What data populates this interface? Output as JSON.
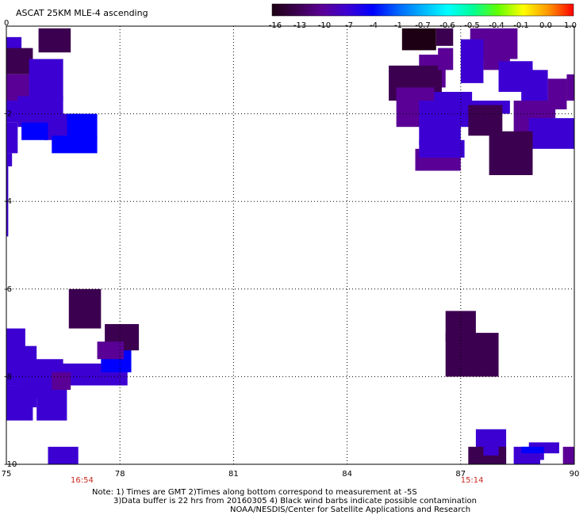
{
  "chart_data": {
    "type": "heatmap",
    "title": "ASCAT 25KM MLE-4 ascending",
    "xlabel": "",
    "ylabel": "",
    "xlim": [
      75,
      90
    ],
    "ylim": [
      -10,
      0
    ],
    "x_ticks": [
      "75",
      "78",
      "81",
      "84",
      "87",
      "90"
    ],
    "y_ticks": [
      "0",
      "-2",
      "-4",
      "-6",
      "-8",
      "-10"
    ],
    "grid": true,
    "colorbar": {
      "ticks": [
        "-16",
        "-13",
        "-10",
        "-7",
        "-4",
        "-1",
        "-0.7",
        "-0.6",
        "-0.5",
        "-0.4",
        "-0.1",
        "0.0",
        "1.0"
      ],
      "colors": [
        "#1e0014",
        "#3c0050",
        "#5a0096",
        "#3c00d2",
        "#0000ff",
        "#0064ff",
        "#00b4ff",
        "#00ffff",
        "#00ff96",
        "#64ff00",
        "#ffff00",
        "#ff9600",
        "#ff0000"
      ]
    },
    "times": [
      {
        "label": "16:54",
        "x": 77.0
      },
      {
        "label": "15:14",
        "x": 87.3
      }
    ],
    "cells": [
      {
        "x0": 75.85,
        "y0": -0.6,
        "x1": 76.7,
        "y1": -0.05,
        "v": -13
      },
      {
        "x0": 75.0,
        "y0": -0.6,
        "x1": 75.4,
        "y1": -0.25,
        "v": -8
      },
      {
        "x0": 75.0,
        "y0": -1.1,
        "x1": 75.7,
        "y1": -0.5,
        "v": -12
      },
      {
        "x0": 75.0,
        "y0": -1.7,
        "x1": 75.9,
        "y1": -1.1,
        "v": -11
      },
      {
        "x0": 75.6,
        "y0": -1.7,
        "x1": 76.5,
        "y1": -0.75,
        "v": -7
      },
      {
        "x0": 75.0,
        "y0": -2.2,
        "x1": 75.8,
        "y1": -1.7,
        "v": -7
      },
      {
        "x0": 75.3,
        "y0": -2.3,
        "x1": 76.5,
        "y1": -1.6,
        "v": -6
      },
      {
        "x0": 76.0,
        "y0": -2.6,
        "x1": 76.9,
        "y1": -2.0,
        "v": -6
      },
      {
        "x0": 76.6,
        "y0": -2.6,
        "x1": 77.4,
        "y1": -2.0,
        "v": -5
      },
      {
        "x0": 75.4,
        "y0": -2.6,
        "x1": 76.1,
        "y1": -2.2,
        "v": -5
      },
      {
        "x0": 75.0,
        "y0": -2.9,
        "x1": 75.3,
        "y1": -2.2,
        "v": -7
      },
      {
        "x0": 76.2,
        "y0": -2.9,
        "x1": 77.4,
        "y1": -2.5,
        "v": -5
      },
      {
        "x0": 75.0,
        "y0": -3.2,
        "x1": 75.15,
        "y1": -2.9,
        "v": -7
      },
      {
        "x0": 75.0,
        "y0": -4.8,
        "x1": 75.05,
        "y1": -3.2,
        "v": -8
      },
      {
        "x0": 85.45,
        "y0": -0.55,
        "x1": 86.35,
        "y1": -0.05,
        "v": -15
      },
      {
        "x0": 86.35,
        "y0": -0.45,
        "x1": 86.8,
        "y1": -0.05,
        "v": -12
      },
      {
        "x0": 85.9,
        "y0": -1.4,
        "x1": 86.6,
        "y1": -0.65,
        "v": -11
      },
      {
        "x0": 85.1,
        "y0": -1.7,
        "x1": 86.5,
        "y1": -0.9,
        "v": -12
      },
      {
        "x0": 86.4,
        "y0": -1.0,
        "x1": 86.8,
        "y1": -0.5,
        "v": -9
      },
      {
        "x0": 87.25,
        "y0": -0.75,
        "x1": 88.5,
        "y1": -0.05,
        "v": -10
      },
      {
        "x0": 87.6,
        "y0": -1.0,
        "x1": 88.3,
        "y1": -0.25,
        "v": -11
      },
      {
        "x0": 87.0,
        "y0": -1.3,
        "x1": 87.6,
        "y1": -0.3,
        "v": -7
      },
      {
        "x0": 88.0,
        "y0": -1.5,
        "x1": 88.9,
        "y1": -0.8,
        "v": -7
      },
      {
        "x0": 88.6,
        "y0": -1.7,
        "x1": 89.3,
        "y1": -1.0,
        "v": -8
      },
      {
        "x0": 89.3,
        "y0": -1.9,
        "x1": 89.8,
        "y1": -1.2,
        "v": -11
      },
      {
        "x0": 89.8,
        "y0": -1.7,
        "x1": 90.0,
        "y1": -1.1,
        "v": -11
      },
      {
        "x0": 85.3,
        "y0": -2.3,
        "x1": 86.3,
        "y1": -1.4,
        "v": -11
      },
      {
        "x0": 85.9,
        "y0": -2.7,
        "x1": 87.0,
        "y1": -1.7,
        "v": -7
      },
      {
        "x0": 86.3,
        "y0": -2.3,
        "x1": 87.3,
        "y1": -1.5,
        "v": -6
      },
      {
        "x0": 86.9,
        "y0": -2.0,
        "x1": 88.3,
        "y1": -1.7,
        "v": -6
      },
      {
        "x0": 87.2,
        "y0": -2.5,
        "x1": 88.1,
        "y1": -1.8,
        "v": -12
      },
      {
        "x0": 88.4,
        "y0": -2.5,
        "x1": 89.5,
        "y1": -1.7,
        "v": -10
      },
      {
        "x0": 88.8,
        "y0": -2.8,
        "x1": 90.0,
        "y1": -2.1,
        "v": -7
      },
      {
        "x0": 85.8,
        "y0": -3.3,
        "x1": 87.0,
        "y1": -2.8,
        "v": -11
      },
      {
        "x0": 85.9,
        "y0": -3.0,
        "x1": 87.1,
        "y1": -2.6,
        "v": -8
      },
      {
        "x0": 87.75,
        "y0": -3.4,
        "x1": 88.9,
        "y1": -2.4,
        "v": -14
      },
      {
        "x0": 75.0,
        "y0": -7.4,
        "x1": 75.5,
        "y1": -6.9,
        "v": -8
      },
      {
        "x0": 75.0,
        "y0": -8.2,
        "x1": 75.8,
        "y1": -7.3,
        "v": -6
      },
      {
        "x0": 75.4,
        "y0": -8.5,
        "x1": 76.5,
        "y1": -7.6,
        "v": -7
      },
      {
        "x0": 76.3,
        "y0": -8.2,
        "x1": 78.2,
        "y1": -7.7,
        "v": -6
      },
      {
        "x0": 77.5,
        "y0": -7.9,
        "x1": 78.3,
        "y1": -7.3,
        "v": -5
      },
      {
        "x0": 75.0,
        "y0": -8.7,
        "x1": 75.8,
        "y1": -8.2,
        "v": -6
      },
      {
        "x0": 75.8,
        "y0": -9.0,
        "x1": 76.6,
        "y1": -8.1,
        "v": -8
      },
      {
        "x0": 76.2,
        "y0": -8.3,
        "x1": 76.7,
        "y1": -7.9,
        "v": -9
      },
      {
        "x0": 75.0,
        "y0": -9.0,
        "x1": 75.7,
        "y1": -8.6,
        "v": -7
      },
      {
        "x0": 76.65,
        "y0": -6.9,
        "x1": 77.5,
        "y1": -6.0,
        "v": -13
      },
      {
        "x0": 77.6,
        "y0": -7.4,
        "x1": 78.5,
        "y1": -6.8,
        "v": -13
      },
      {
        "x0": 77.4,
        "y0": -7.6,
        "x1": 78.1,
        "y1": -7.2,
        "v": -11
      },
      {
        "x0": 86.6,
        "y0": -7.2,
        "x1": 87.4,
        "y1": -6.5,
        "v": -12
      },
      {
        "x0": 86.6,
        "y0": -8.0,
        "x1": 88.0,
        "y1": -7.0,
        "v": -12
      },
      {
        "x0": 88.8,
        "y0": -9.75,
        "x1": 89.6,
        "y1": -9.5,
        "v": -6
      },
      {
        "x0": 87.4,
        "y0": -9.2,
        "x1": 88.2,
        "y1": -10.0,
        "v": -6
      },
      {
        "x0": 76.1,
        "y0": -9.6,
        "x1": 76.9,
        "y1": -10.0,
        "v": -6
      },
      {
        "x0": 87.2,
        "y0": -9.6,
        "x1": 88.2,
        "y1": -10.0,
        "v": -12
      },
      {
        "x0": 87.6,
        "y0": -9.6,
        "x1": 88.0,
        "y1": -9.8,
        "v": -7
      },
      {
        "x0": 88.4,
        "y0": -9.6,
        "x1": 89.1,
        "y1": -10.0,
        "v": -7
      },
      {
        "x0": 88.6,
        "y0": -9.6,
        "x1": 89.2,
        "y1": -9.75,
        "v": -5
      },
      {
        "x0": 89.1,
        "y0": -9.75,
        "x1": 89.2,
        "y1": -9.9,
        "v": -8
      },
      {
        "x0": 89.7,
        "y0": -9.6,
        "x1": 90.0,
        "y1": -10.0,
        "v": -11
      }
    ]
  },
  "notes": {
    "line1": "Note: 1) Times are GMT 2)Times along bottom correspond to measurement at -5S",
    "line2": "3)Data buffer is 22 hrs from 20160305 4) Black wind barbs indicate possible contamination",
    "line3": "NOAA/NESDIS/Center for Satellite Applications and Research"
  }
}
